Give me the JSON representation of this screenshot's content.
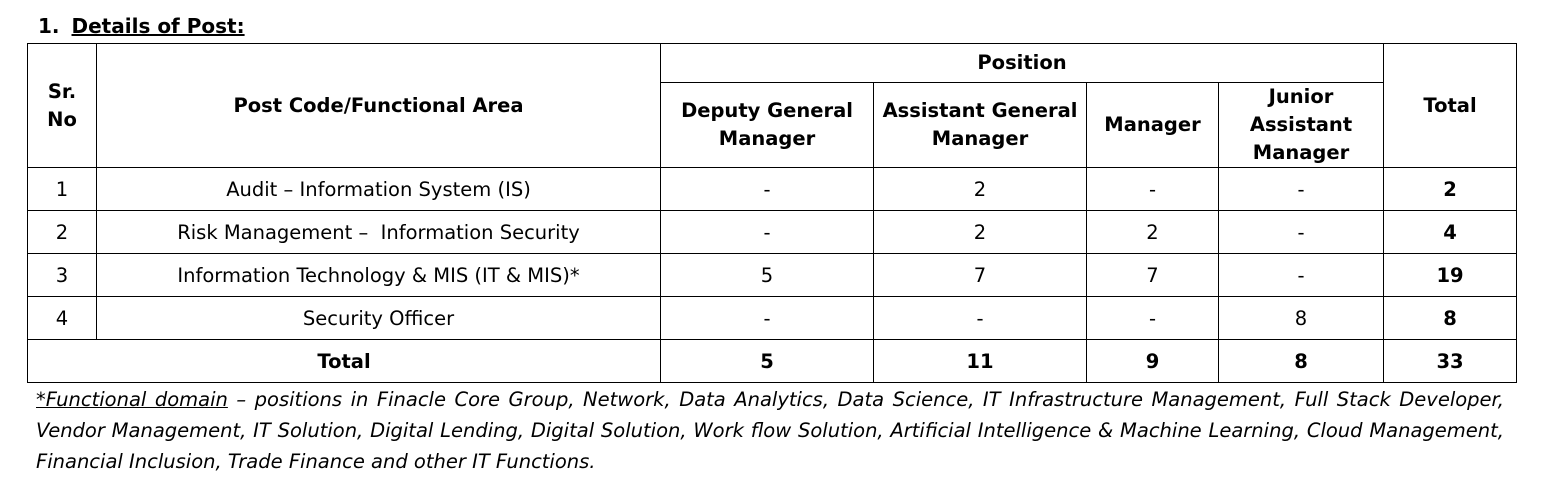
{
  "heading": {
    "number": "1.",
    "title": "Details of Post:"
  },
  "table": {
    "col_sr": "Sr. No",
    "col_area": "Post Code/Functional Area",
    "col_position": "Position",
    "positions": [
      "Deputy General Manager",
      "Assistant General Manager",
      "Manager",
      "Junior Assistant Manager"
    ],
    "col_total": "Total",
    "rows": [
      {
        "sr": "1",
        "area": "Audit – Information System (IS)",
        "values": [
          "-",
          "2",
          "-",
          "-"
        ],
        "total": "2"
      },
      {
        "sr": "2",
        "area": "Risk Management –  Information Security",
        "values": [
          "-",
          "2",
          "2",
          "-"
        ],
        "total": "4"
      },
      {
        "sr": "3",
        "area": "Information Technology & MIS (IT & MIS)*",
        "values": [
          "5",
          "7",
          "7",
          "-"
        ],
        "total": "19"
      },
      {
        "sr": "4",
        "area": "Security Officer",
        "values": [
          "-",
          "-",
          "-",
          "8"
        ],
        "total": "8"
      }
    ],
    "total_row": {
      "label": "Total",
      "values": [
        "5",
        "11",
        "9",
        "8"
      ],
      "total": "33"
    }
  },
  "note": {
    "lead": "*Functional domain",
    "text": " – positions in Finacle Core Group, Network, Data Analytics, Data Science, IT Infrastructure Management, Full Stack Developer, Vendor Management, IT Solution, Digital Lending, Digital Solution, Work flow Solution, Artificial Intelligence & Machine Learning, Cloud Management, Financial Inclusion, Trade Finance and other IT Functions."
  }
}
